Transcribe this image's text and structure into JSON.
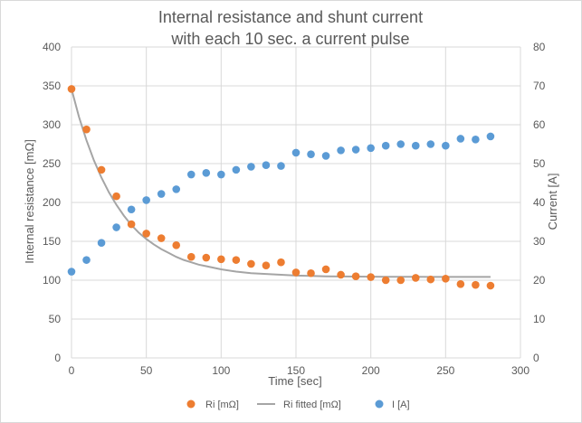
{
  "chart_data": {
    "type": "scatter",
    "title_lines": [
      "Internal resistance and shunt current",
      "with each 10 sec. a current pulse"
    ],
    "xlabel": "Time [sec]",
    "ylabel_left": "Internal resistance [mΩ]",
    "ylabel_right": "Current [A]",
    "xlim": [
      0,
      300
    ],
    "ylim_left": [
      0,
      400
    ],
    "ylim_right": [
      0,
      80
    ],
    "x_ticks": [
      "0",
      "50",
      "100",
      "150",
      "200",
      "250",
      "300"
    ],
    "y_ticks_left": [
      "0",
      "50",
      "100",
      "150",
      "200",
      "250",
      "300",
      "350",
      "400"
    ],
    "y_ticks_right": [
      "0",
      "10",
      "20",
      "30",
      "40",
      "50",
      "60",
      "70",
      "80"
    ],
    "grid": true,
    "legend_position": "bottom",
    "colors": {
      "ri": "#ed7d31",
      "fit": "#a5a5a5",
      "current": "#5b9bd5",
      "grid": "#d9d9d9",
      "text": "#595959"
    },
    "series": [
      {
        "name": "Ri [mΩ]",
        "type": "scatter",
        "axis": "left",
        "x": [
          0,
          10,
          20,
          30,
          40,
          50,
          60,
          70,
          80,
          90,
          100,
          110,
          120,
          130,
          140,
          150,
          160,
          170,
          180,
          190,
          200,
          210,
          220,
          230,
          240,
          250,
          260,
          270,
          280
        ],
        "y": [
          346,
          294,
          242,
          208,
          172,
          160,
          154,
          145,
          130,
          129,
          127,
          126,
          121,
          119,
          123,
          110,
          109,
          114,
          107,
          105,
          104,
          100,
          100,
          103,
          101,
          102,
          95,
          94,
          93
        ]
      },
      {
        "name": "Ri  fitted [mΩ]",
        "type": "line",
        "axis": "left",
        "x": [
          0,
          5,
          10,
          15,
          20,
          25,
          30,
          35,
          40,
          45,
          50,
          55,
          60,
          65,
          70,
          75,
          80,
          85,
          90,
          95,
          100,
          110,
          120,
          130,
          140,
          150,
          160,
          170,
          180,
          190,
          200,
          210,
          220,
          230,
          240,
          250,
          260,
          270,
          280
        ],
        "y": [
          346,
          310,
          280,
          254,
          232,
          213,
          197,
          183,
          171,
          161,
          153,
          146,
          140,
          135,
          130,
          126,
          123,
          120,
          118,
          116,
          114,
          111,
          109,
          108,
          107,
          106,
          105.5,
          105,
          104.8,
          104.6,
          104.5,
          104.4,
          104.3,
          104.3,
          104.2,
          104.2,
          104.2,
          104.2,
          104.2
        ]
      },
      {
        "name": "I [A]",
        "type": "scatter",
        "axis": "right",
        "x": [
          0,
          10,
          20,
          30,
          40,
          50,
          60,
          70,
          80,
          90,
          100,
          110,
          120,
          130,
          140,
          150,
          160,
          170,
          180,
          190,
          200,
          210,
          220,
          230,
          240,
          250,
          260,
          270,
          280
        ],
        "y": [
          22.2,
          25.2,
          29.6,
          33.6,
          38.2,
          40.6,
          42.2,
          43.4,
          47.2,
          47.6,
          47.2,
          48.4,
          49.2,
          49.6,
          49.4,
          52.8,
          52.4,
          52,
          53.4,
          53.6,
          54,
          54.6,
          55,
          54.6,
          55,
          54.6,
          56.4,
          56.2,
          57
        ]
      }
    ]
  }
}
